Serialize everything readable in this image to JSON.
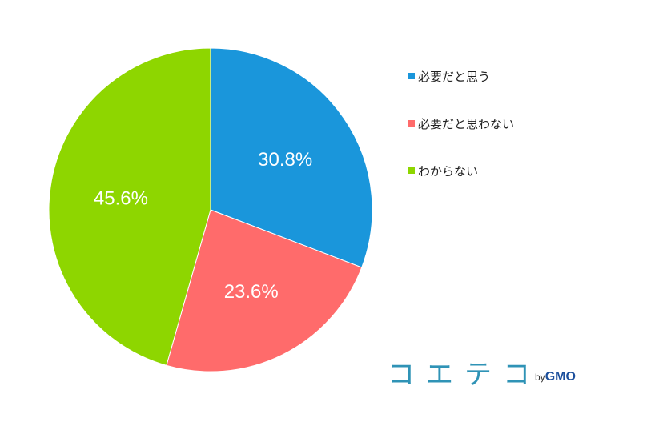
{
  "chart_data": {
    "type": "pie",
    "categories": [
      "必要だと思う",
      "必要だと思わない",
      "わからない"
    ],
    "values": [
      30.8,
      23.6,
      45.6
    ],
    "labels": [
      "30.8%",
      "23.6%",
      "45.6%"
    ],
    "colors": [
      "#1a96db",
      "#ff6b6b",
      "#8ed600"
    ],
    "start_angle": "12 o'clock",
    "direction": "clockwise",
    "legend_position": "right"
  },
  "brand": {
    "logo_text": "コエテコ",
    "by_text": "by",
    "gmo_text": "GMO"
  }
}
